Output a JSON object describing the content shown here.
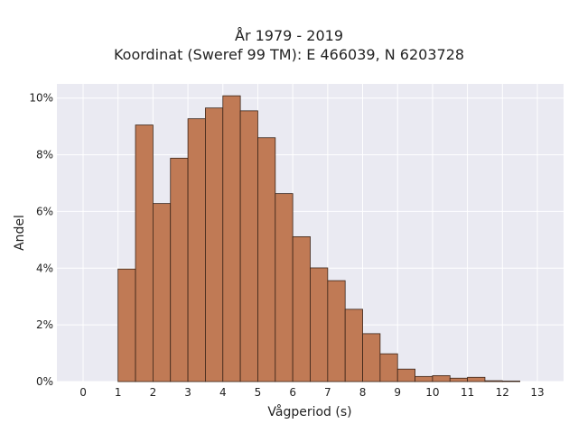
{
  "chart_data": {
    "type": "bar",
    "title": "År 1979 - 2019",
    "subtitle": "Koordinat (Sweref 99 TM): E 466039, N 6203728",
    "xlabel": "Vågperiod (s)",
    "ylabel": "Andel",
    "xlim": [
      -0.75,
      13.75
    ],
    "ylim": [
      0,
      10.5
    ],
    "bin_width": 0.5,
    "x_ticks": [
      0,
      1,
      2,
      3,
      4,
      5,
      6,
      7,
      8,
      9,
      10,
      11,
      12,
      13
    ],
    "x_tick_labels": [
      "0",
      "1",
      "2",
      "3",
      "4",
      "5",
      "6",
      "7",
      "8",
      "9",
      "10",
      "11",
      "12",
      "13"
    ],
    "y_ticks": [
      0,
      2,
      4,
      6,
      8,
      10
    ],
    "y_tick_labels": [
      "0%",
      "2%",
      "4%",
      "6%",
      "8%",
      "10%"
    ],
    "bin_starts": [
      1.0,
      1.5,
      2.0,
      2.5,
      3.0,
      3.5,
      4.0,
      4.5,
      5.0,
      5.5,
      6.0,
      6.5,
      7.0,
      7.5,
      8.0,
      8.5,
      9.0,
      9.5,
      10.0,
      10.5,
      11.0,
      11.5,
      12.0
    ],
    "values": [
      3.97,
      9.05,
      6.28,
      7.88,
      9.27,
      9.65,
      10.08,
      9.55,
      8.6,
      6.63,
      5.11,
      4.01,
      3.56,
      2.55,
      1.69,
      0.98,
      0.44,
      0.18,
      0.21,
      0.12,
      0.15,
      0.03,
      0.02
    ],
    "bar_color": "#c07a55",
    "bar_edge_color": "#3a2418",
    "plot_background": "#eaeaf2",
    "grid": true,
    "grid_color": "#ffffff"
  }
}
